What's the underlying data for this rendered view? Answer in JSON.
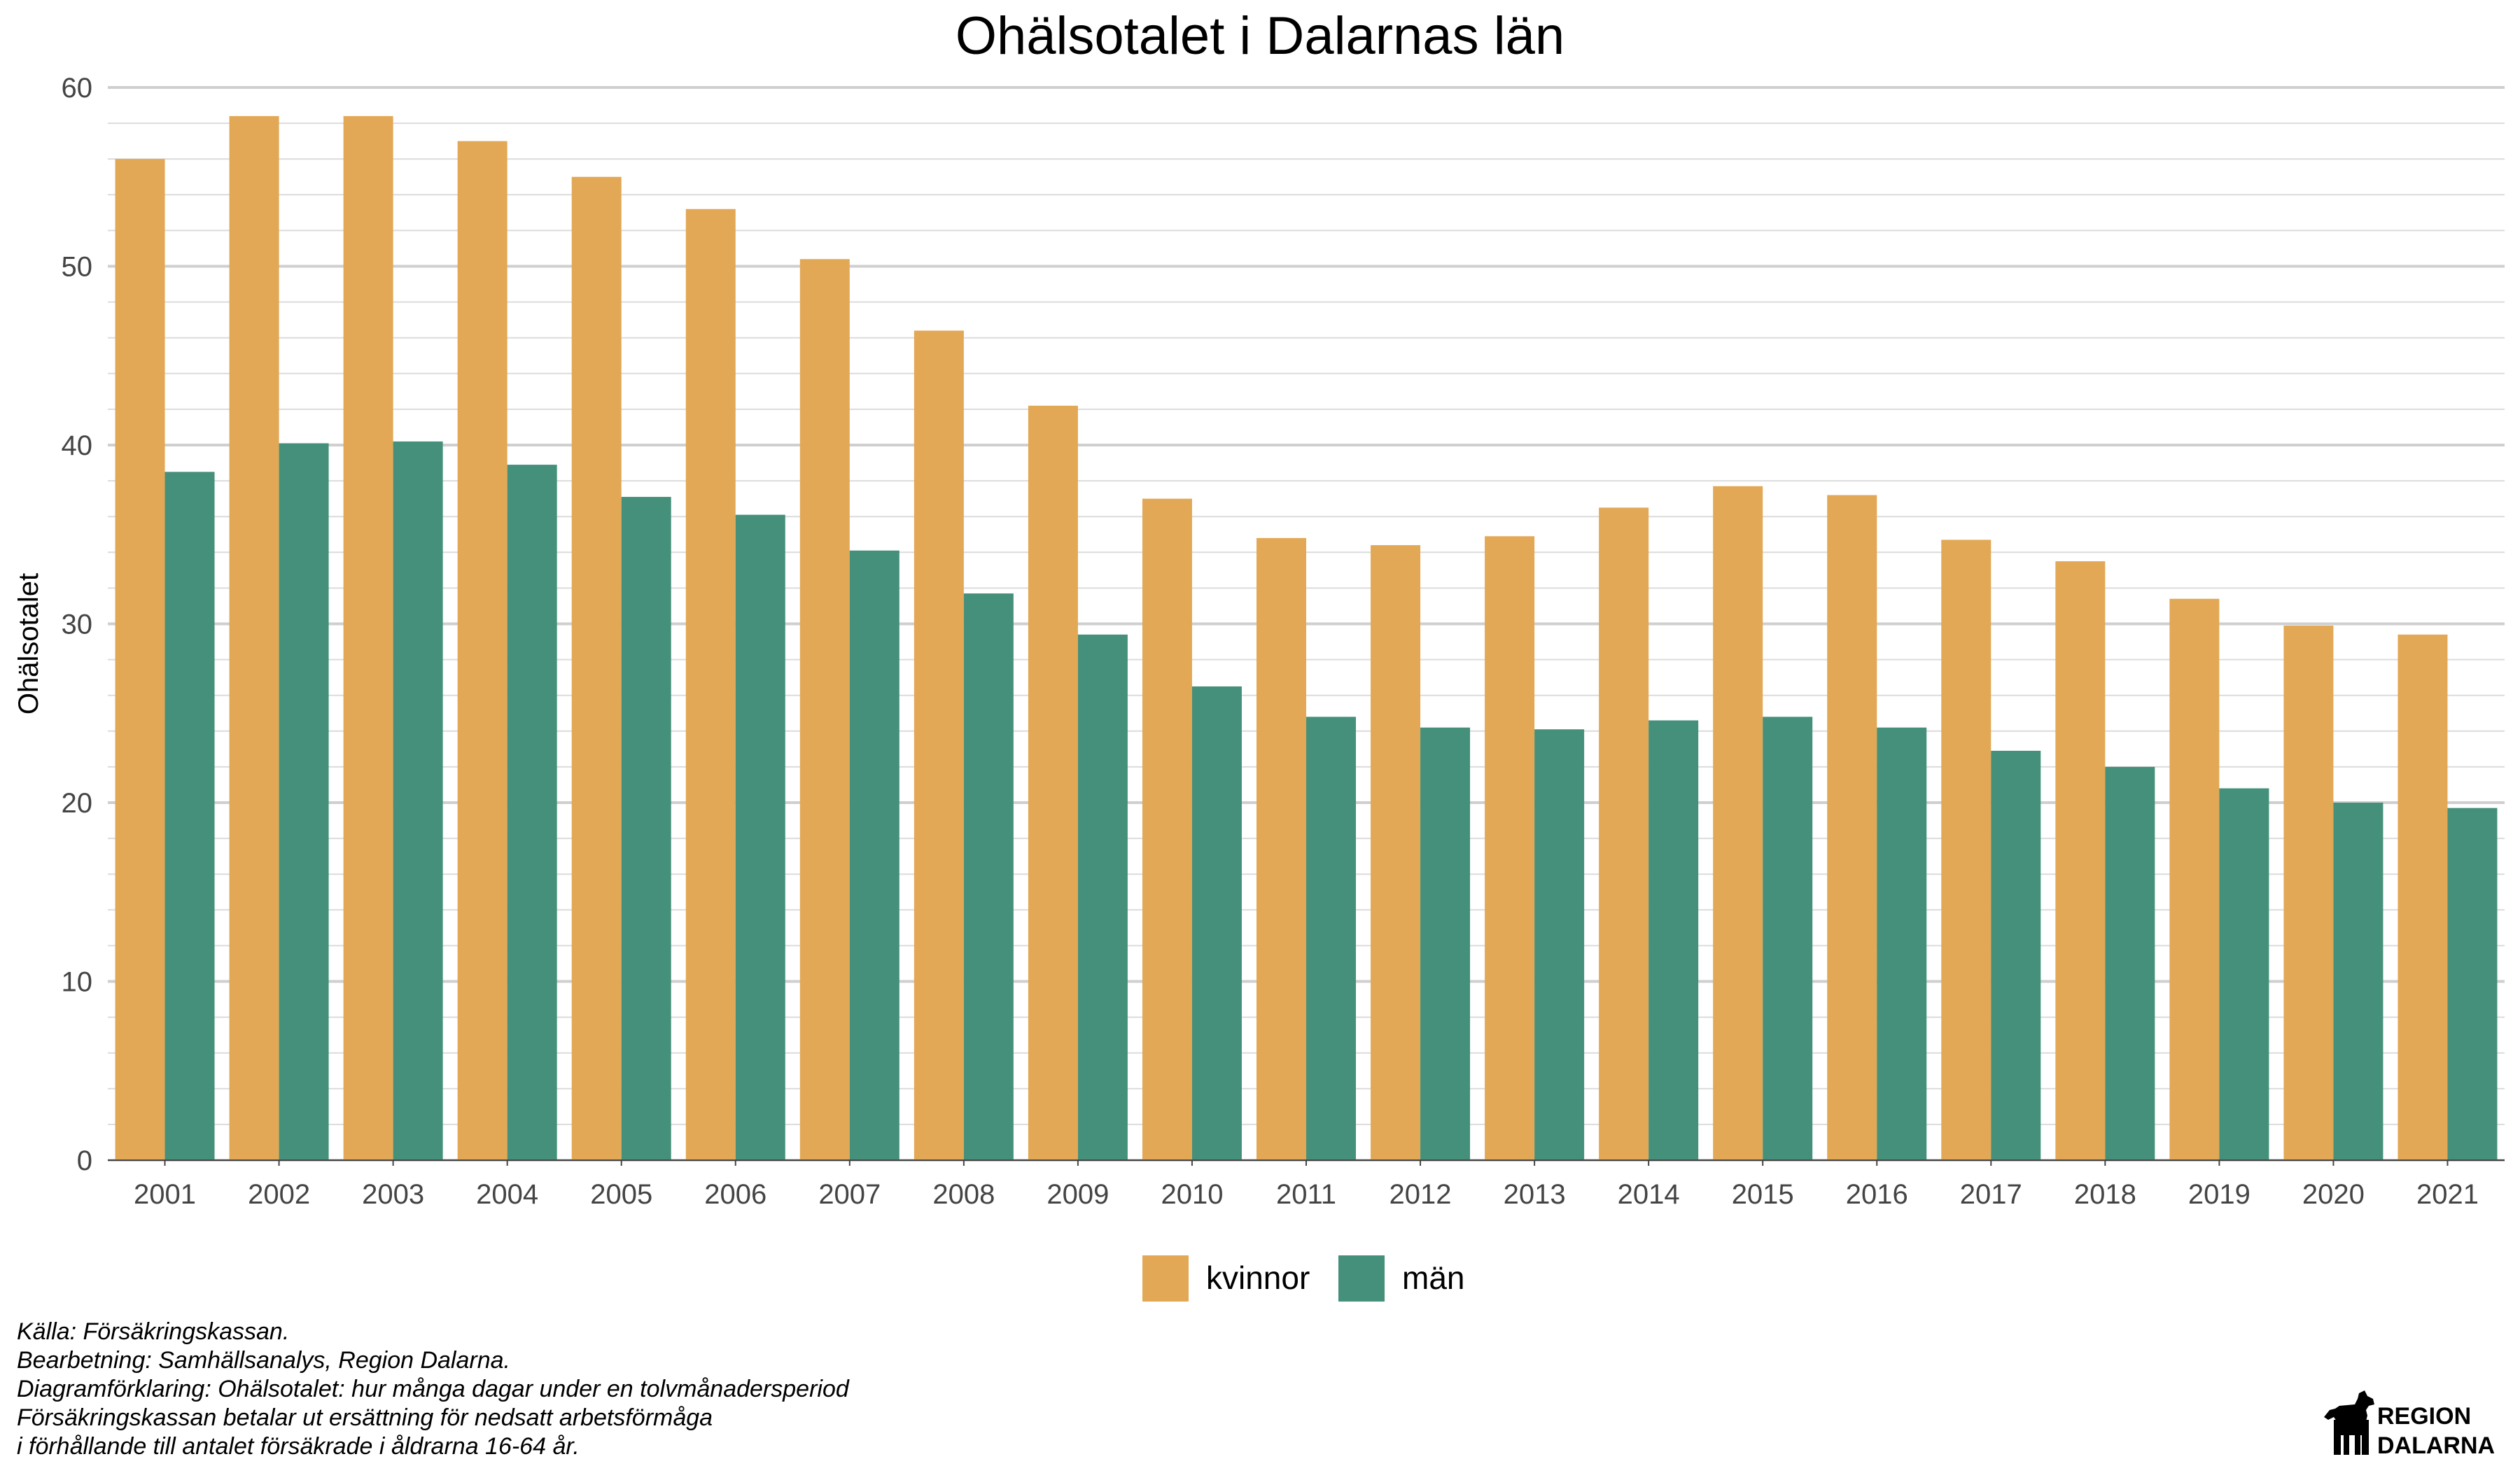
{
  "chart_data": {
    "type": "bar",
    "title": "Ohälsotalet i Dalarnas län",
    "xlabel": "",
    "ylabel": "Ohälsotalet",
    "ylim": [
      0,
      60
    ],
    "yticks": [
      0,
      10,
      20,
      30,
      40,
      50,
      60
    ],
    "grid": true,
    "legend_position": "bottom",
    "categories": [
      "2001",
      "2002",
      "2003",
      "2004",
      "2005",
      "2006",
      "2007",
      "2008",
      "2009",
      "2010",
      "2011",
      "2012",
      "2013",
      "2014",
      "2015",
      "2016",
      "2017",
      "2018",
      "2019",
      "2020",
      "2021"
    ],
    "series": [
      {
        "name": "kvinnor",
        "color": "#E2A855",
        "values": [
          56.0,
          58.4,
          58.4,
          57.0,
          55.0,
          53.2,
          50.4,
          46.4,
          42.2,
          37.0,
          34.8,
          34.4,
          34.9,
          36.5,
          37.7,
          37.2,
          34.7,
          33.5,
          31.4,
          29.9,
          29.4
        ]
      },
      {
        "name": "män",
        "color": "#45907A",
        "values": [
          38.5,
          40.1,
          40.2,
          38.9,
          37.1,
          36.1,
          34.1,
          31.7,
          29.4,
          26.5,
          24.8,
          24.2,
          24.1,
          24.6,
          24.8,
          24.2,
          22.9,
          22.0,
          20.8,
          20.0,
          19.7
        ]
      }
    ]
  },
  "caption": {
    "lines": [
      "Källa: Försäkringskassan.",
      "Bearbetning: Samhällsanalys, Region Dalarna.",
      "Diagramförklaring: Ohälsotalet: hur många dagar under en tolvmånadersperiod",
      "Försäkringskassan betalar ut ersättning för nedsatt arbetsförmåga",
      "i förhållande till antalet försäkrade i åldrarna 16-64 år."
    ]
  },
  "logo": {
    "line1": "REGION",
    "line2": "DALARNA",
    "icon": "dalahorse-icon"
  }
}
